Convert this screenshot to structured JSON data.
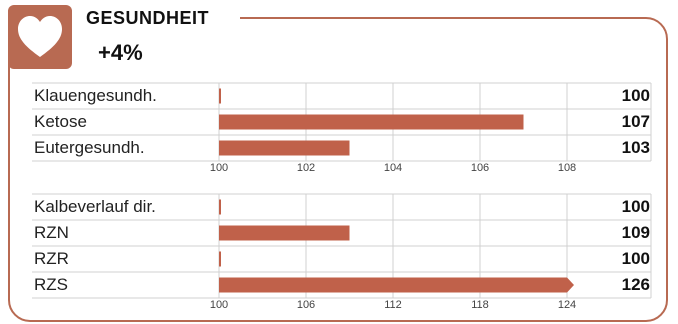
{
  "header": {
    "icon": "heart-icon",
    "title": "GESUNDHEIT",
    "delta": "+4%"
  },
  "colors": {
    "accent": "#b86a52",
    "bar": "#c0614a",
    "grid": "#d0d0d0"
  },
  "chart_data": [
    {
      "type": "bar",
      "orientation": "horizontal",
      "categories": [
        "Klauengesundh.",
        "Ketose",
        "Eutergesundh."
      ],
      "values": [
        100,
        107,
        103
      ],
      "value_labels": [
        "100",
        "107",
        "103"
      ],
      "xlim": [
        100,
        108
      ],
      "xticks": [
        "100",
        "102",
        "104",
        "106",
        "108"
      ],
      "grid": true
    },
    {
      "type": "bar",
      "orientation": "horizontal",
      "categories": [
        "Kalbeverlauf dir.",
        "RZN",
        "RZR",
        "RZS"
      ],
      "values": [
        100,
        109,
        100,
        126
      ],
      "value_labels": [
        "100",
        "109",
        "100",
        "126"
      ],
      "xlim": [
        100,
        124
      ],
      "xticks": [
        "100",
        "106",
        "112",
        "118",
        "124"
      ],
      "grid": true
    }
  ]
}
